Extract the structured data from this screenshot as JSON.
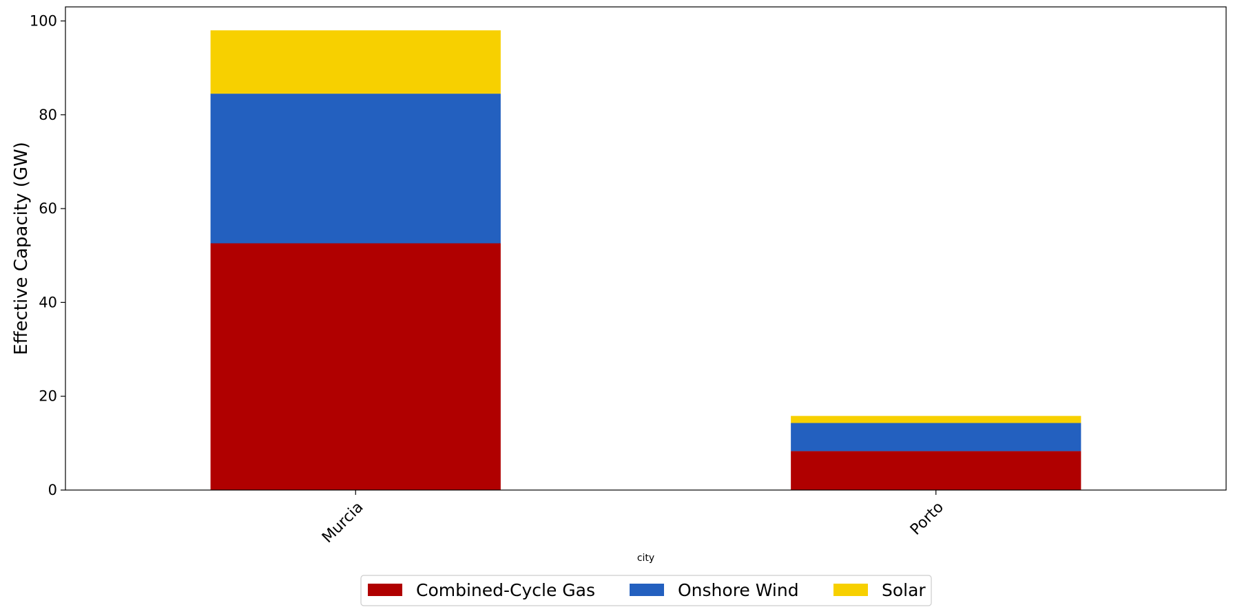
{
  "chart_data": {
    "type": "bar",
    "stacked": true,
    "title": "",
    "xlabel": "city",
    "ylabel": "Effective Capacity (GW)",
    "categories": [
      "Murcia",
      "Porto"
    ],
    "ylim": [
      0,
      103
    ],
    "yticks": [
      0,
      20,
      40,
      60,
      80,
      100
    ],
    "grid": false,
    "legend_position": "bottom-center",
    "series": [
      {
        "name": "Combined-Cycle Gas",
        "color": "#b00000",
        "values": [
          52.6,
          8.3
        ]
      },
      {
        "name": "Onshore Wind",
        "color": "#2360bf",
        "values": [
          31.9,
          6.0
        ]
      },
      {
        "name": "Solar",
        "color": "#f7d000",
        "values": [
          13.5,
          1.5
        ]
      }
    ]
  }
}
